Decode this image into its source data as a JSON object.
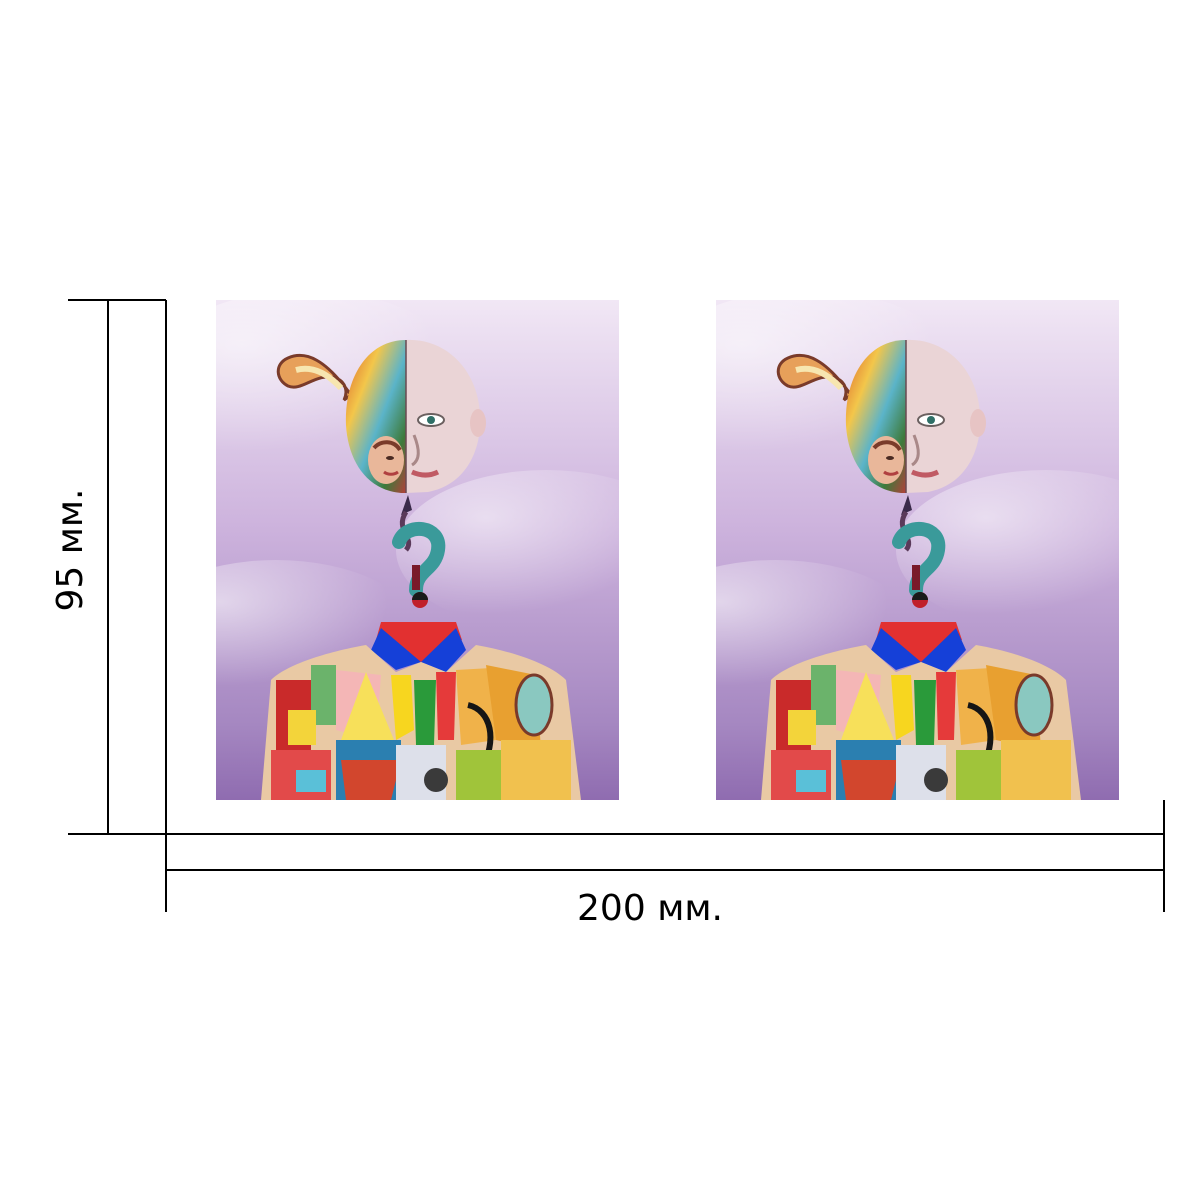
{
  "dimensions": {
    "width_label": "200 мм.",
    "height_label": "95 мм."
  },
  "artwork": {
    "panels": [
      {
        "subject": "collage-figure-with-question-mark"
      },
      {
        "subject": "collage-figure-with-question-mark"
      }
    ],
    "colors": {
      "sky_light": "#efe3f3",
      "sky_dark": "#9c78b8",
      "face_skin": "#e9d3d4"
    }
  }
}
